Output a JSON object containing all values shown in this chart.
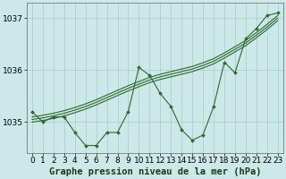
{
  "hours": [
    0,
    1,
    2,
    3,
    4,
    5,
    6,
    7,
    8,
    9,
    10,
    11,
    12,
    13,
    14,
    15,
    16,
    17,
    18,
    19,
    20,
    21,
    22,
    23
  ],
  "main_line": [
    1035.2,
    1035.0,
    1035.1,
    1035.1,
    1034.8,
    1034.55,
    1034.55,
    1034.8,
    1034.8,
    1035.2,
    1036.05,
    1035.9,
    1035.55,
    1035.3,
    1034.85,
    1034.65,
    1034.75,
    1035.3,
    1036.15,
    1035.95,
    1036.6,
    1036.8,
    1037.05,
    1037.1
  ],
  "smooth_line1": [
    1035.1,
    1035.13,
    1035.17,
    1035.22,
    1035.28,
    1035.35,
    1035.43,
    1035.52,
    1035.61,
    1035.7,
    1035.78,
    1035.86,
    1035.92,
    1035.97,
    1036.02,
    1036.07,
    1036.14,
    1036.22,
    1036.33,
    1036.45,
    1036.57,
    1036.72,
    1036.88,
    1037.05
  ],
  "smooth_line2": [
    1035.05,
    1035.08,
    1035.12,
    1035.17,
    1035.23,
    1035.3,
    1035.38,
    1035.47,
    1035.56,
    1035.65,
    1035.73,
    1035.81,
    1035.87,
    1035.92,
    1035.97,
    1036.02,
    1036.09,
    1036.17,
    1036.28,
    1036.4,
    1036.52,
    1036.67,
    1036.83,
    1037.0
  ],
  "smooth_line3": [
    1035.0,
    1035.03,
    1035.07,
    1035.12,
    1035.18,
    1035.25,
    1035.33,
    1035.42,
    1035.51,
    1035.6,
    1035.68,
    1035.76,
    1035.82,
    1035.87,
    1035.92,
    1035.97,
    1036.04,
    1036.12,
    1036.23,
    1036.35,
    1036.47,
    1036.62,
    1036.78,
    1036.95
  ],
  "line_color": "#2d6a2d",
  "background_color": "#cce8e8",
  "grid_color": "#aacccc",
  "title": "Graphe pression niveau de la mer (hPa)",
  "ylim": [
    1034.4,
    1037.3
  ],
  "yticks": [
    1035,
    1036,
    1037
  ],
  "xlim": [
    -0.5,
    23.5
  ],
  "title_fontsize": 7.5,
  "tick_fontsize": 6.5
}
